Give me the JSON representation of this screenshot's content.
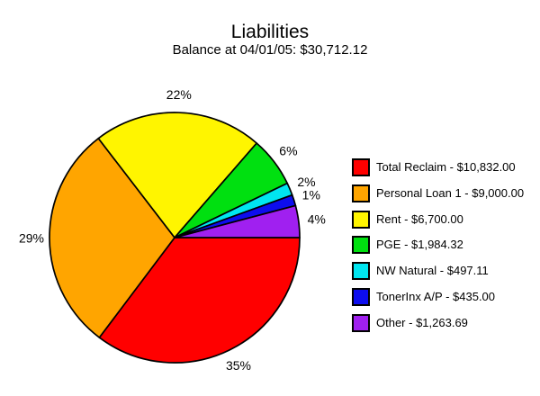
{
  "chart_data": {
    "type": "pie",
    "title": "Liabilities",
    "subtitle": "Balance at 04/01/05: $30,712.12",
    "balance_date": "04/01/05",
    "balance_total": "$30,712.12",
    "legend_position": "right",
    "start_angle": "east",
    "direction": "clockwise",
    "stroke_color": "#000000",
    "slices": [
      {
        "name": "Total Reclaim",
        "value": 10832.0,
        "legend_label": "Total Reclaim - $10,832.00",
        "percent_label": "35%",
        "color": "#ff0000"
      },
      {
        "name": "Personal Loan 1",
        "value": 9000.0,
        "legend_label": "Personal Loan 1 - $9,000.00",
        "percent_label": "29%",
        "color": "#ffa500"
      },
      {
        "name": "Rent",
        "value": 6700.0,
        "legend_label": "Rent - $6,700.00",
        "percent_label": "22%",
        "color": "#fff500"
      },
      {
        "name": "PGE",
        "value": 1984.32,
        "legend_label": "PGE - $1,984.32",
        "percent_label": "6%",
        "color": "#00e010"
      },
      {
        "name": "NW Natural",
        "value": 497.11,
        "legend_label": "NW Natural - $497.11",
        "percent_label": "2%",
        "color": "#00e6f0"
      },
      {
        "name": "TonerInx A/P",
        "value": 435.0,
        "legend_label": "TonerInx A/P - $435.00",
        "percent_label": "1%",
        "color": "#0d0dee"
      },
      {
        "name": "Other",
        "value": 1263.69,
        "legend_label": "Other - $1,263.69",
        "percent_label": "4%",
        "color": "#a020f0"
      }
    ]
  }
}
